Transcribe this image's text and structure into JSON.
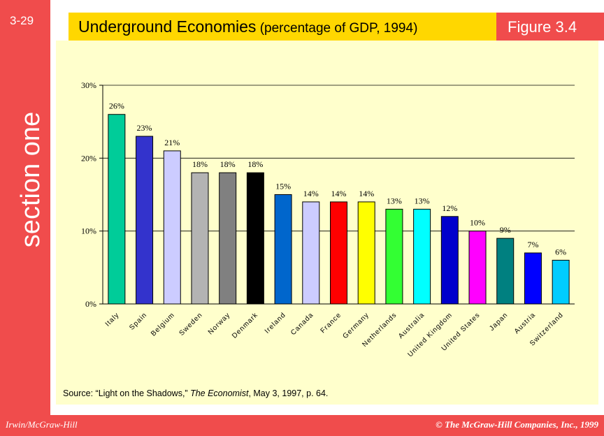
{
  "slide": {
    "number": "3-29",
    "section_label": "section one",
    "title_main": "Underground Economies",
    "title_sub": " (percentage of GDP, 1994)",
    "figure_label": "Figure 3.4",
    "publisher": "Irwin/McGraw-Hill",
    "copyright": "© The McGraw-Hill Companies, Inc., 1999",
    "source_prefix": "Source: “Light on the Shadows,” ",
    "source_italic": "The Economist",
    "source_suffix": ", May 3, 1997, p. 64.",
    "colors": {
      "band": "#f04c4c",
      "title_bar": "#ffd700",
      "panel": "#ffffcc"
    }
  },
  "chart_data": {
    "type": "bar",
    "title": "Underground Economies (percentage of GDP, 1994)",
    "xlabel": "",
    "ylabel": "",
    "ylim": [
      0,
      30
    ],
    "yticks": [
      0,
      10,
      20,
      30
    ],
    "ytick_labels": [
      "0%",
      "10%",
      "20%",
      "30%"
    ],
    "grid": true,
    "categories": [
      "Italy",
      "Spain",
      "Belgium",
      "Sweden",
      "Norway",
      "Denmark",
      "Ireland",
      "Canada",
      "France",
      "Germany",
      "Netherlands",
      "Australia",
      "United Kingdom",
      "United States",
      "Japan",
      "Austria",
      "Switzerland"
    ],
    "values": [
      26,
      23,
      21,
      18,
      18,
      18,
      15,
      14,
      14,
      14,
      13,
      13,
      12,
      10,
      9,
      7,
      6
    ],
    "value_labels": [
      "26%",
      "23%",
      "21%",
      "18%",
      "18%",
      "18%",
      "15%",
      "14%",
      "14%",
      "14%",
      "13%",
      "13%",
      "12%",
      "10%",
      "9%",
      "7%",
      "6%"
    ],
    "bar_colors": [
      "#00cc99",
      "#3333cc",
      "#ccccff",
      "#b3b3b3",
      "#808080",
      "#000000",
      "#0066cc",
      "#ccccff",
      "#ff0000",
      "#ffff00",
      "#33ff33",
      "#00ffff",
      "#0000cc",
      "#ff00ff",
      "#008080",
      "#0000ff",
      "#00ccff"
    ]
  }
}
